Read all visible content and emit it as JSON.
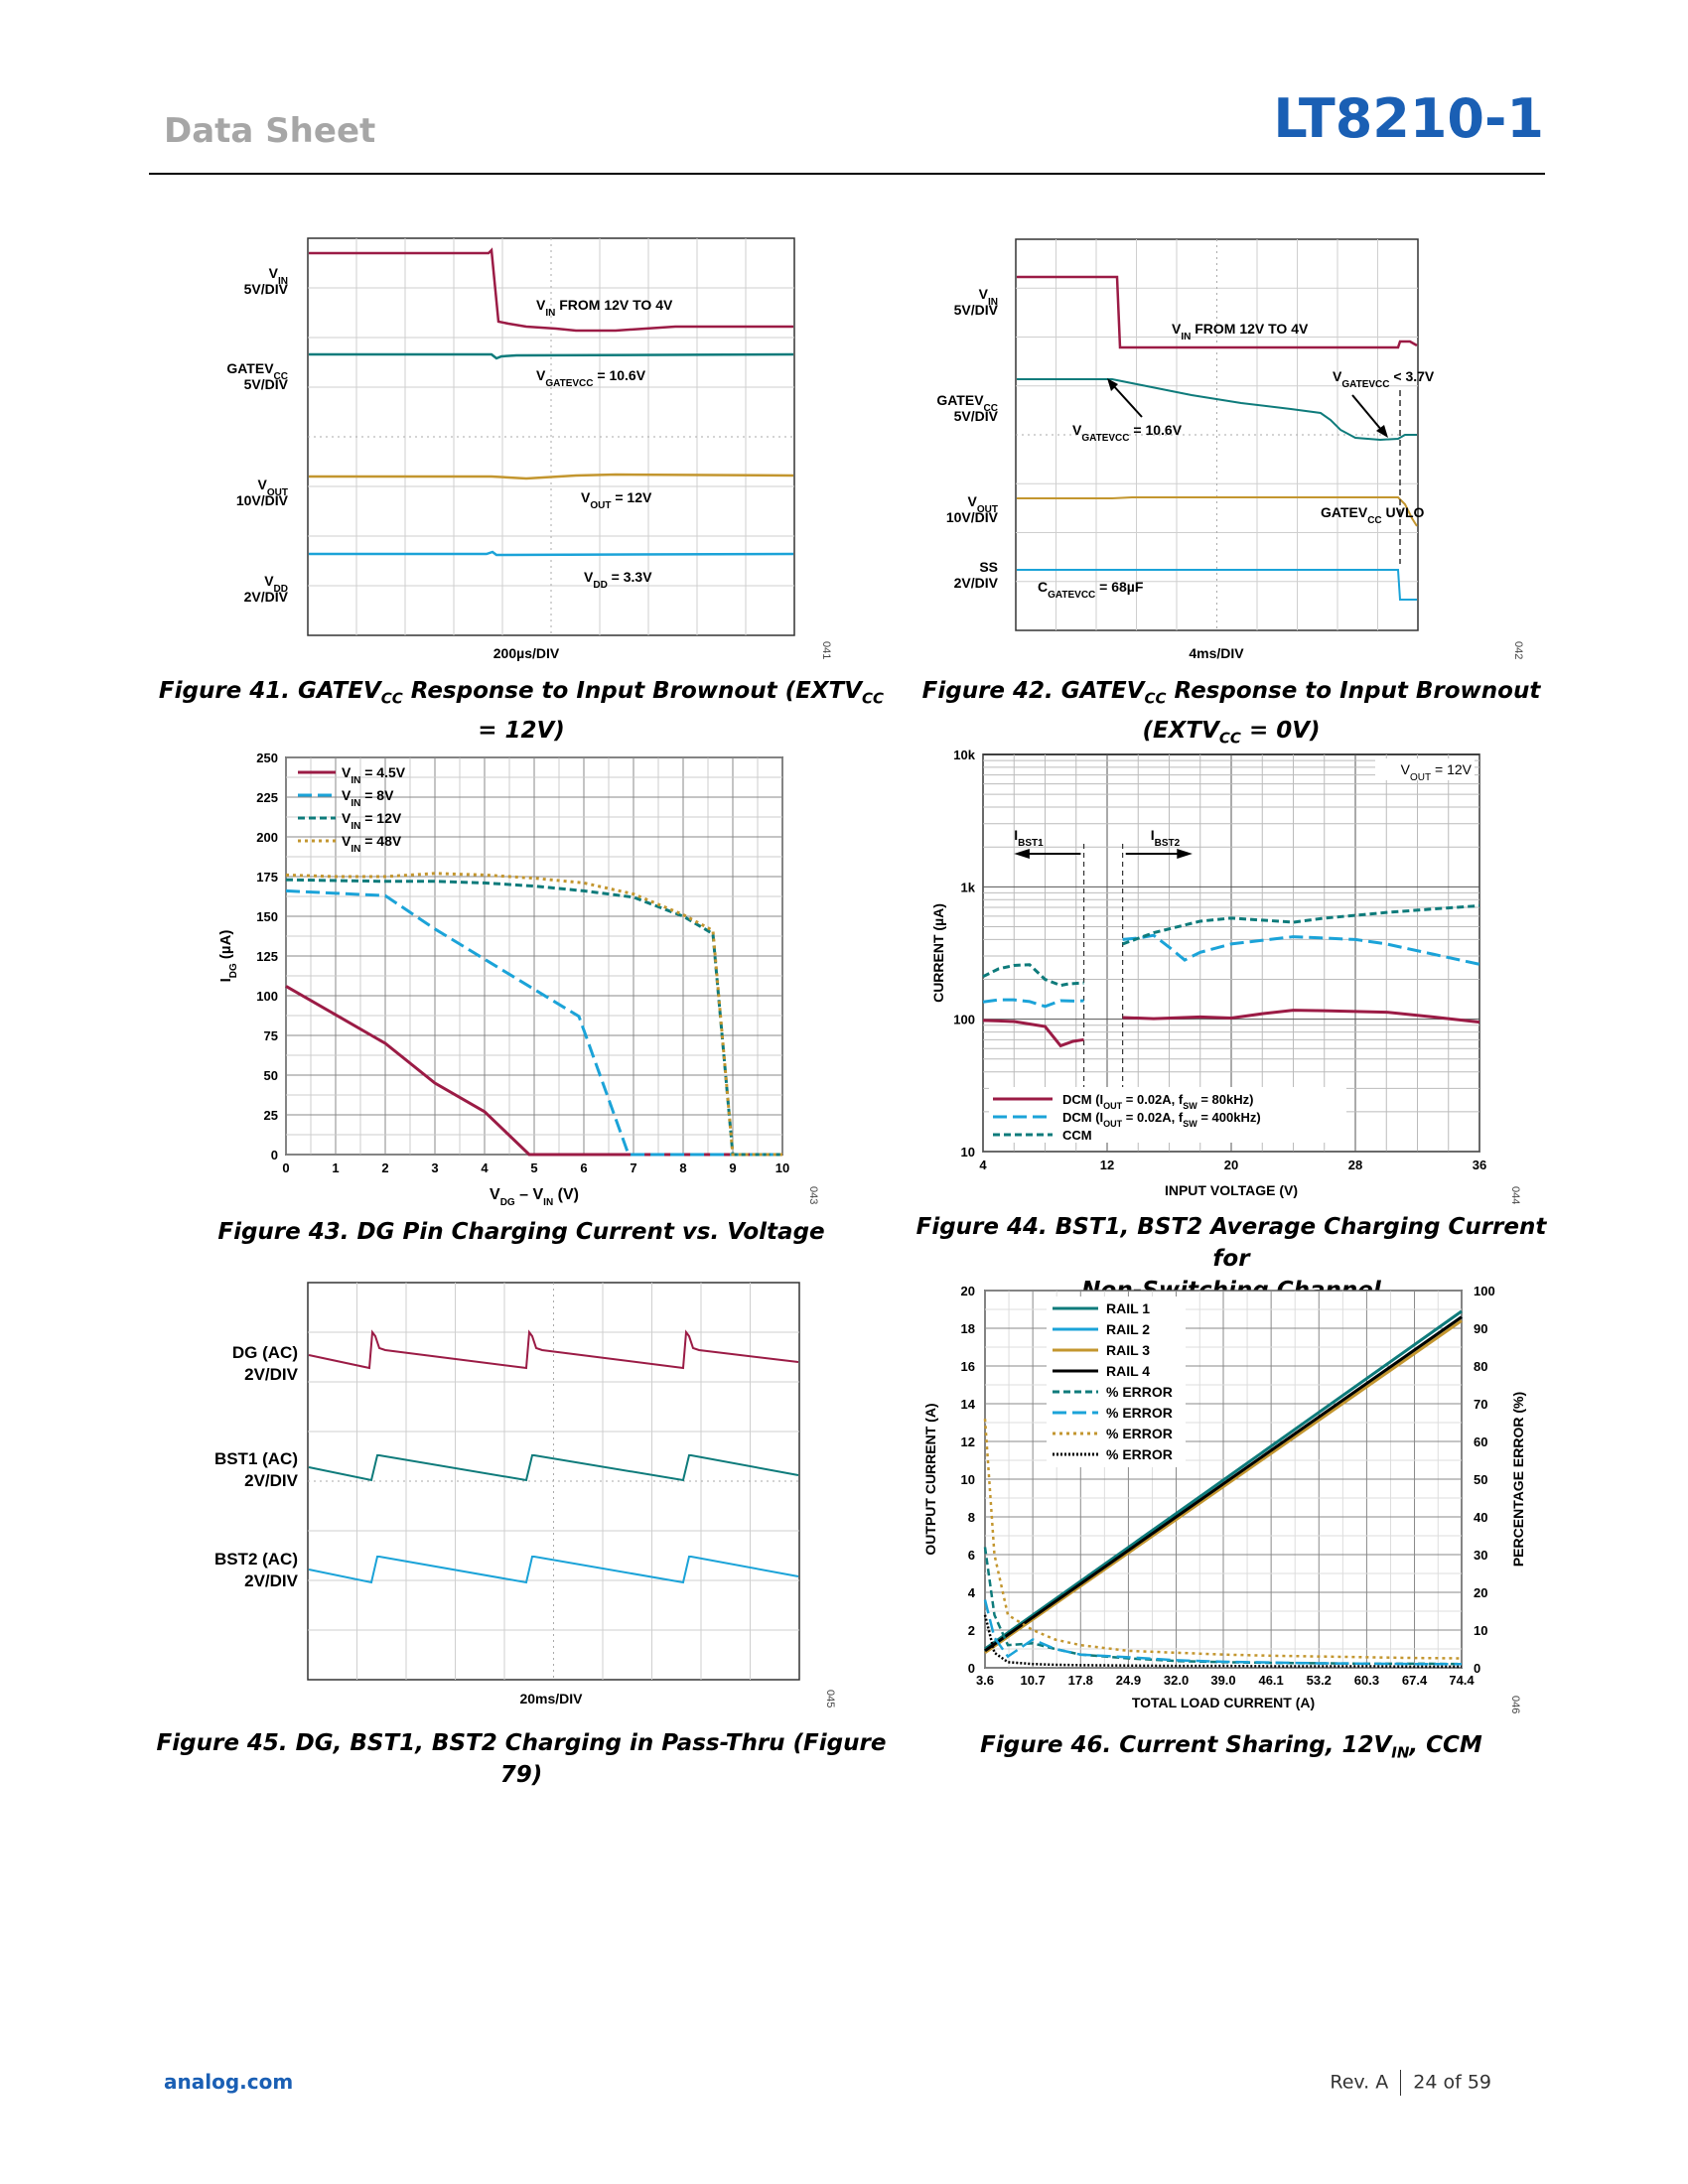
{
  "header": {
    "left": "Data Sheet",
    "right": "LT8210-1"
  },
  "footer": {
    "site": "analog.com",
    "rev": "Rev. A",
    "page": "24 of 59"
  },
  "colors": {
    "maroon": "#9b1b45",
    "teal": "#0e7b7b",
    "cyan": "#1ba3d8",
    "gold": "#c3962f",
    "blue": "#1a5fb4"
  },
  "fig41": {
    "caption": "Figure 41. GATEVCC Response to Input Brownout (EXTVCC = 12V)",
    "num": "041",
    "timebase": "200µs/DIV",
    "ch_vin": "VIN",
    "ch_vin_div": "5V/DIV",
    "ch_gate": "GATEVCC",
    "ch_gate_div": "5V/DIV",
    "ch_vout": "VOUT",
    "ch_vout_div": "10V/DIV",
    "ch_vdd": "VDD",
    "ch_vdd_div": "2V/DIV",
    "ann_vin": "VIN FROM 12V TO 4V",
    "ann_gate": "VGATEVCC = 10.6V",
    "ann_vout": "VOUT = 12V",
    "ann_vdd": "VDD = 3.3V"
  },
  "fig42": {
    "caption_l1": "Figure 42. GATEVCC Response to Input Brownout",
    "caption_l2": "(EXTVCC = 0V)",
    "num": "042",
    "timebase": "4ms/DIV",
    "ch_vin": "VIN",
    "ch_vin_div": "5V/DIV",
    "ch_gate": "GATEVCC",
    "ch_gate_div": "5V/DIV",
    "ch_vout": "VOUT",
    "ch_vout_div": "10V/DIV",
    "ch_ss": "SS",
    "ch_ss_div": "2V/DIV",
    "ann_vin": "VIN FROM 12V TO 4V",
    "ann_gate_hi": "VGATEVCC = 10.6V",
    "ann_gate_lo": "VGATEVCC < 3.7V",
    "ann_uvlo": "GATEVCC UVLO",
    "ann_cap": "CGATEVCC = 68µF"
  },
  "fig45": {
    "caption": "Figure 45. DG, BST1, BST2 Charging in Pass-Thru (Figure 79)",
    "num": "045",
    "timebase": "20ms/DIV",
    "ch_dg": "DG (AC)",
    "ch_dg_div": "2V/DIV",
    "ch_bst1": "BST1 (AC)",
    "ch_bst1_div": "2V/DIV",
    "ch_bst2": "BST2 (AC)",
    "ch_bst2_div": "2V/DIV"
  },
  "chart_data": [
    {
      "id": "fig43",
      "type": "line",
      "caption": "Figure 43. DG Pin Charging Current vs. Voltage",
      "num": "043",
      "xlabel": "VDG – VIN (V)",
      "ylabel": "IDG (µA)",
      "xlim": [
        0,
        10
      ],
      "ylim": [
        0,
        250
      ],
      "xticks": [
        0,
        1,
        2,
        3,
        4,
        5,
        6,
        7,
        8,
        9,
        10
      ],
      "yticks": [
        0,
        25,
        50,
        75,
        100,
        125,
        150,
        175,
        200,
        225,
        250
      ],
      "grid": true,
      "legend": "top-left",
      "series": [
        {
          "name": "VIN = 4.5V",
          "color": "#9b1b45",
          "dash": "solid",
          "x": [
            0,
            1,
            2,
            3,
            4,
            4.9,
            5,
            10
          ],
          "y": [
            106,
            88,
            70,
            45,
            27,
            0,
            0,
            0
          ]
        },
        {
          "name": "VIN = 8V",
          "color": "#1ba3d8",
          "dash": "long",
          "x": [
            0,
            2,
            3,
            4,
            5,
            5.9,
            6.9,
            7,
            10
          ],
          "y": [
            166,
            163,
            142,
            123,
            104,
            87,
            0,
            0,
            0
          ]
        },
        {
          "name": "VIN = 12V",
          "color": "#0e7b7b",
          "dash": "short",
          "x": [
            0,
            2,
            3,
            4,
            5,
            6,
            7,
            8,
            8.6,
            9,
            10
          ],
          "y": [
            173,
            172,
            172,
            171,
            169,
            166,
            162,
            150,
            139,
            0,
            0
          ]
        },
        {
          "name": "VIN = 48V",
          "color": "#c3962f",
          "dash": "dot",
          "x": [
            0,
            1,
            2,
            3,
            4,
            5,
            6,
            7,
            8,
            8.6,
            9,
            10
          ],
          "y": [
            176,
            175,
            175,
            177,
            176,
            174,
            171,
            164,
            151,
            141,
            0,
            0
          ]
        }
      ]
    },
    {
      "id": "fig44",
      "type": "line",
      "caption_l1": "Figure 44. BST1, BST2 Average Charging Current for",
      "caption_l2": "Non-Switching Channel",
      "num": "044",
      "xlabel": "INPUT VOLTAGE (V)",
      "ylabel": "CURRENT (µA)",
      "yscale": "log",
      "xlim": [
        4,
        36
      ],
      "ylim": [
        10,
        10000
      ],
      "xticks": [
        4,
        12,
        20,
        28,
        36
      ],
      "yticks": [
        10,
        100,
        1000,
        10000
      ],
      "ytick_labels": [
        "10",
        "100",
        "1k",
        "10k"
      ],
      "grid": true,
      "legend": "bottom-left",
      "annotation": "VOUT = 12V",
      "label_bst1": "IBST1",
      "label_bst2": "IBST2",
      "series": [
        {
          "name": "DCM (IOUT = 0.02A, fSW = 80kHz)",
          "color": "#9b1b45",
          "dash": "solid",
          "segments": [
            {
              "x": [
                4,
                5,
                6,
                7,
                8,
                9,
                9.8,
                10.5
              ],
              "y": [
                98,
                97,
                96,
                92,
                88,
                63,
                68,
                70
              ]
            },
            {
              "x": [
                13,
                15,
                18,
                20,
                22,
                24,
                26,
                30,
                33,
                36
              ],
              "y": [
                103,
                101,
                104,
                102,
                110,
                117,
                116,
                113,
                104,
                95
              ]
            }
          ]
        },
        {
          "name": "DCM (IOUT = 0.02A, fSW = 400kHz)",
          "color": "#1ba3d8",
          "dash": "long",
          "segments": [
            {
              "x": [
                4,
                5,
                6,
                7,
                8,
                9,
                10,
                10.5
              ],
              "y": [
                135,
                140,
                140,
                136,
                125,
                138,
                137,
                138
              ]
            },
            {
              "x": [
                13,
                14,
                15,
                16,
                17,
                18,
                20,
                24,
                28,
                30,
                33,
                36
              ],
              "y": [
                400,
                410,
                430,
                350,
                280,
                320,
                370,
                420,
                400,
                370,
                310,
                260
              ]
            }
          ]
        },
        {
          "name": "CCM",
          "color": "#0e7b7b",
          "dash": "short",
          "segments": [
            {
              "x": [
                4,
                5,
                6,
                7,
                8,
                9,
                9.5,
                10.5
              ],
              "y": [
                210,
                240,
                255,
                258,
                200,
                180,
                185,
                188
              ]
            },
            {
              "x": [
                13,
                15,
                18,
                20,
                22,
                24,
                26,
                30,
                33,
                36
              ],
              "y": [
                370,
                450,
                550,
                580,
                560,
                540,
                580,
                640,
                680,
                720
              ]
            }
          ]
        }
      ]
    },
    {
      "id": "fig46",
      "type": "line",
      "caption": "Figure 46. Current Sharing, 12VIN, CCM",
      "num": "046",
      "xlabel": "TOTAL LOAD CURRENT (A)",
      "ylabel": "OUTPUT CURRENT (A)",
      "y2label": "PERCENTAGE ERROR (%)",
      "xlim": [
        3.6,
        74.4
      ],
      "ylim": [
        0,
        20
      ],
      "y2lim": [
        0,
        100
      ],
      "xticks": [
        3.6,
        10.7,
        17.8,
        24.9,
        32.0,
        39.0,
        46.1,
        53.2,
        60.3,
        67.4,
        74.4
      ],
      "xtick_labels": [
        "3.6",
        "10.7",
        "17.8",
        "24.9",
        "32.0",
        "39.0",
        "46.1",
        "53.2",
        "60.3",
        "67.4",
        "74.4"
      ],
      "yticks": [
        0,
        2,
        4,
        6,
        8,
        10,
        12,
        14,
        16,
        18,
        20
      ],
      "y2ticks": [
        0,
        10,
        20,
        30,
        40,
        50,
        60,
        70,
        80,
        90,
        100
      ],
      "grid": true,
      "legend": "top-left",
      "series": [
        {
          "name": "RAIL 1",
          "color": "#0e7b7b",
          "dash": "solid",
          "axis": "left",
          "x": [
            3.6,
            74.4
          ],
          "y": [
            1.0,
            18.9
          ]
        },
        {
          "name": "RAIL 2",
          "color": "#1ba3d8",
          "dash": "solid",
          "axis": "left",
          "x": [
            3.6,
            74.4
          ],
          "y": [
            0.85,
            18.6
          ]
        },
        {
          "name": "RAIL 3",
          "color": "#c3962f",
          "dash": "solid",
          "axis": "left",
          "x": [
            3.6,
            74.4
          ],
          "y": [
            0.8,
            18.4
          ]
        },
        {
          "name": "RAIL 4",
          "color": "#000000",
          "dash": "solid",
          "axis": "left",
          "x": [
            3.6,
            74.4
          ],
          "y": [
            0.9,
            18.6
          ]
        },
        {
          "name": "% ERROR",
          "color": "#0e7b7b",
          "dash": "short",
          "axis": "right",
          "x": [
            3.6,
            5,
            7,
            10.7,
            14,
            17.8,
            24.9,
            32,
            39,
            46.1,
            53.2,
            60.3,
            67.4,
            74.4
          ],
          "y": [
            32,
            14,
            6,
            6.5,
            5,
            3.5,
            2.5,
            1.8,
            1.5,
            1.3,
            1.2,
            1.1,
            1.1,
            1.0
          ]
        },
        {
          "name": "% ERROR",
          "color": "#1ba3d8",
          "dash": "long",
          "axis": "right",
          "x": [
            3.6,
            5,
            7,
            10.7,
            14,
            17.8,
            24.9,
            32,
            39,
            46.1,
            53.2,
            60.3,
            67.4,
            74.4
          ],
          "y": [
            18,
            8,
            3,
            7.5,
            5,
            3.5,
            2.8,
            2.0,
            1.6,
            1.4,
            1.2,
            1.1,
            1.0,
            1.0
          ]
        },
        {
          "name": "% ERROR",
          "color": "#c3962f",
          "dash": "dot",
          "axis": "right",
          "x": [
            3.6,
            5,
            7,
            10.7,
            14,
            17.8,
            24.9,
            32,
            39,
            46.1,
            53.2,
            60.3,
            67.4,
            74.4
          ],
          "y": [
            66,
            30,
            14,
            10,
            7.5,
            6,
            4.5,
            4,
            3.5,
            3.2,
            3.0,
            2.8,
            2.6,
            2.5
          ]
        },
        {
          "name": "% ERROR",
          "color": "#000000",
          "dash": "dense",
          "axis": "right",
          "x": [
            3.6,
            5,
            7,
            10.7,
            14,
            17.8,
            24.9,
            32,
            39,
            46.1,
            53.2,
            60.3,
            67.4,
            74.4
          ],
          "y": [
            14,
            4,
            1.5,
            1,
            0.8,
            0.7,
            0.6,
            0.5,
            0.5,
            0.4,
            0.4,
            0.4,
            0.3,
            0.3
          ]
        }
      ]
    }
  ]
}
